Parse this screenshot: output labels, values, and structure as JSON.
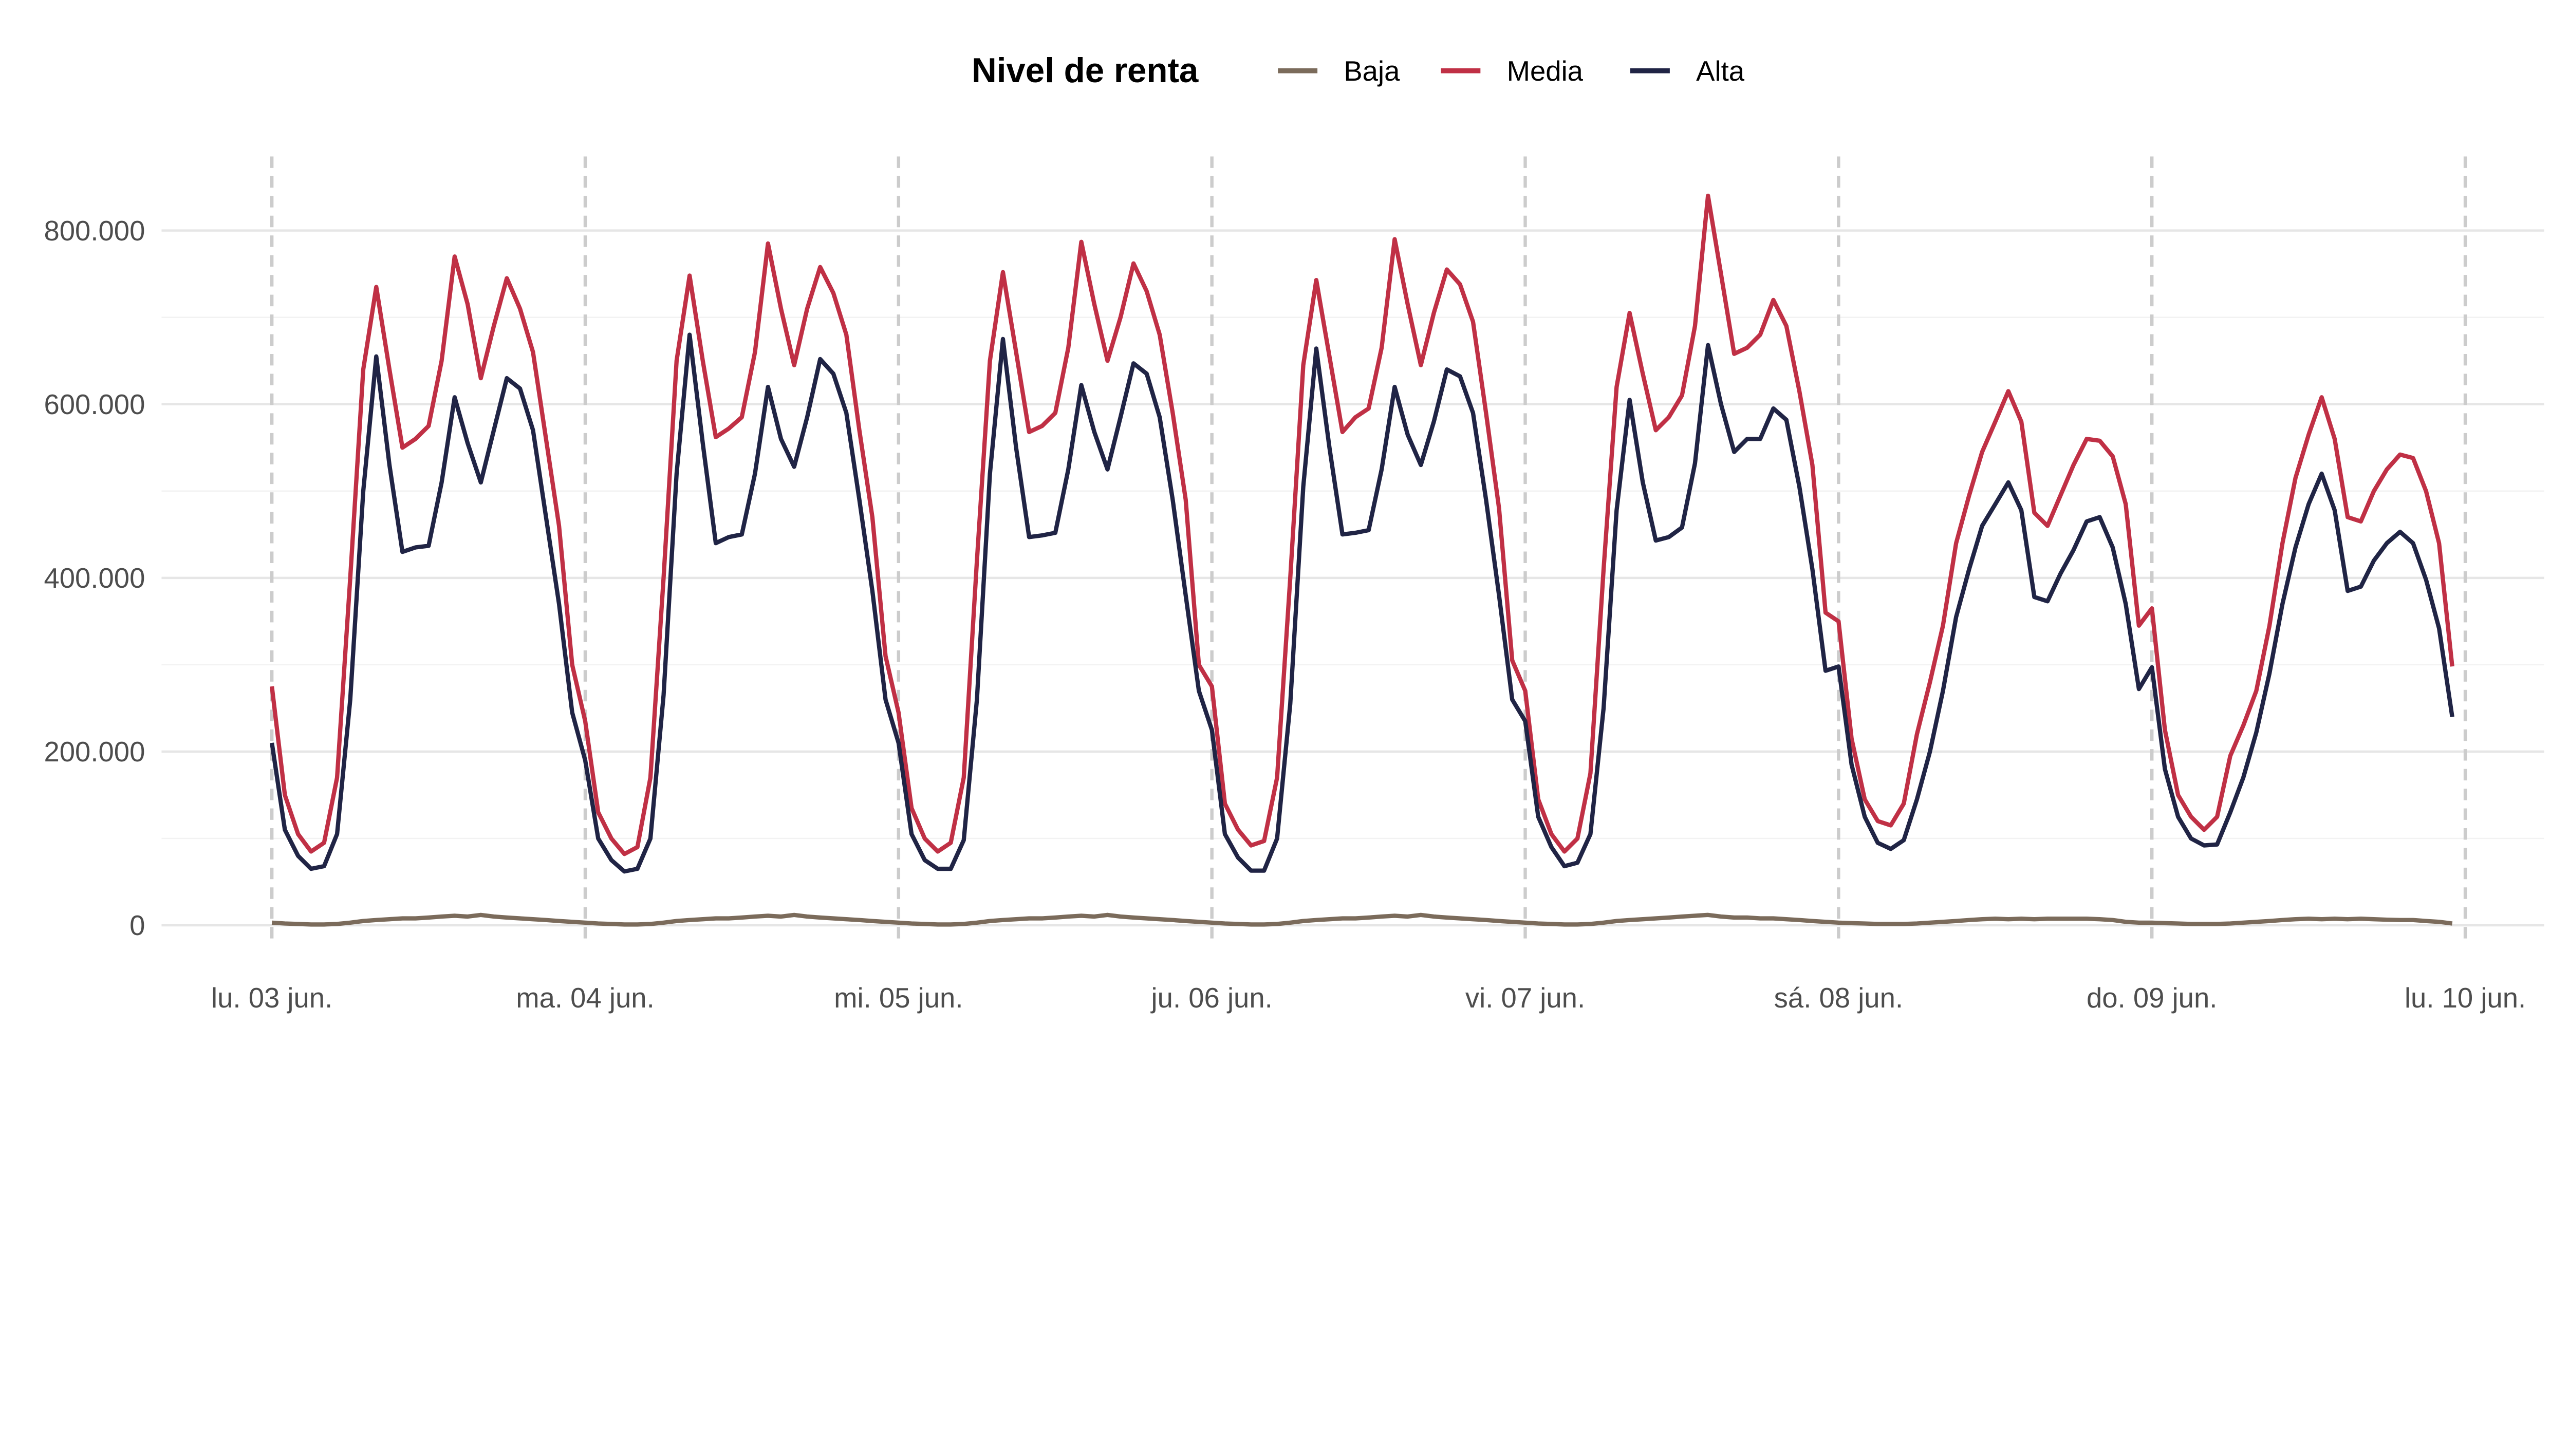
{
  "chart_data": {
    "type": "line",
    "title": "",
    "xlabel": "",
    "ylabel": "",
    "value_unit_multiplier": 1000,
    "ylim": [
      0,
      850
    ],
    "y_ticks": [
      0,
      200,
      400,
      600,
      800
    ],
    "y_tick_labels": [
      "0",
      "200.000",
      "400.000",
      "600.000",
      "800.000"
    ],
    "x_tick_labels": [
      "lu. 03 jun.",
      "ma. 04 jun.",
      "mi. 05 jun.",
      "ju. 06 jun.",
      "vi. 07 jun.",
      "sá. 08 jun.",
      "do. 09 jun.",
      "lu. 10 jun."
    ],
    "x_resolution": "hourly, starting lu. 03 jun. 00:00",
    "grid": true,
    "legend": {
      "title": "Nivel de renta",
      "placement": "top-center"
    },
    "series": [
      {
        "name": "Baja",
        "color": "#7b6b5b",
        "values": [
          3,
          2,
          1.5,
          1,
          1,
          1.5,
          3,
          5,
          6,
          7,
          8,
          8,
          9,
          10,
          11,
          10,
          12,
          10,
          9,
          8,
          7,
          6,
          5,
          4,
          3,
          2,
          1.5,
          1,
          1,
          1.5,
          3,
          5,
          6,
          7,
          8,
          8,
          9,
          10,
          11,
          10,
          12,
          10,
          9,
          8,
          7,
          6,
          5,
          4,
          3,
          2,
          1.5,
          1,
          1,
          1.5,
          3,
          5,
          6,
          7,
          8,
          8,
          9,
          10,
          11,
          10,
          12,
          10,
          9,
          8,
          7,
          6,
          5,
          4,
          3,
          2,
          1.5,
          1,
          1,
          1.5,
          3,
          5,
          6,
          7,
          8,
          8,
          9,
          10,
          11,
          10,
          12,
          10,
          9,
          8,
          7,
          6,
          5,
          4,
          3,
          2,
          1.5,
          1,
          1,
          1.5,
          3,
          5,
          6,
          7,
          8,
          9,
          10,
          11,
          12,
          10,
          9,
          9,
          8,
          8,
          7,
          6,
          5,
          4,
          3,
          2.5,
          2,
          1.5,
          1.5,
          1.5,
          2,
          3,
          4,
          5,
          6,
          7,
          7.5,
          7,
          7.5,
          7,
          7.5,
          7.5,
          7.5,
          7.5,
          7,
          6,
          4,
          3,
          3,
          2.5,
          2,
          1.5,
          1.5,
          1.5,
          2,
          3,
          4,
          5,
          6,
          7,
          7.5,
          7,
          7.5,
          7,
          7.5,
          7,
          6.5,
          6,
          6,
          5,
          4,
          2
        ]
      },
      {
        "name": "Media",
        "color": "#c03045",
        "values": [
          275,
          150,
          105,
          85,
          95,
          170,
          400,
          640,
          735,
          640,
          550,
          560,
          575,
          650,
          770,
          715,
          630,
          690,
          745,
          710,
          660,
          560,
          460,
          300,
          235,
          130,
          100,
          82,
          90,
          170,
          400,
          650,
          748,
          650,
          562,
          572,
          585,
          660,
          785,
          710,
          645,
          710,
          758,
          728,
          680,
          570,
          470,
          310,
          245,
          135,
          100,
          85,
          95,
          170,
          420,
          650,
          752,
          660,
          568,
          575,
          590,
          665,
          787,
          715,
          650,
          700,
          762,
          730,
          680,
          590,
          490,
          300,
          275,
          140,
          110,
          92,
          97,
          170,
          400,
          645,
          743,
          655,
          568,
          585,
          595,
          665,
          790,
          715,
          645,
          705,
          755,
          738,
          695,
          590,
          480,
          305,
          270,
          145,
          105,
          85,
          100,
          175,
          410,
          620,
          705,
          635,
          570,
          585,
          610,
          690,
          840,
          750,
          658,
          665,
          680,
          720,
          690,
          615,
          530,
          360,
          350,
          215,
          145,
          120,
          115,
          140,
          220,
          280,
          345,
          440,
          495,
          545,
          580,
          615,
          580,
          475,
          460,
          495,
          530,
          560,
          558,
          540,
          485,
          345,
          365,
          225,
          150,
          125,
          110,
          125,
          195,
          230,
          270,
          345,
          440,
          515,
          565,
          608,
          560,
          470,
          465,
          500,
          525,
          542,
          538,
          500,
          440,
          298
        ]
      },
      {
        "name": "Alta",
        "color": "#202445",
        "values": [
          210,
          110,
          80,
          65,
          68,
          105,
          260,
          500,
          655,
          530,
          430,
          435,
          437,
          510,
          608,
          555,
          510,
          570,
          630,
          618,
          570,
          470,
          370,
          245,
          190,
          100,
          75,
          62,
          65,
          100,
          265,
          520,
          680,
          555,
          440,
          447,
          450,
          520,
          620,
          560,
          528,
          585,
          652,
          635,
          590,
          490,
          385,
          260,
          210,
          105,
          75,
          65,
          65,
          98,
          260,
          520,
          675,
          550,
          447,
          449,
          452,
          525,
          622,
          568,
          525,
          585,
          647,
          635,
          585,
          490,
          380,
          270,
          225,
          105,
          78,
          63,
          63,
          100,
          255,
          505,
          664,
          550,
          450,
          452,
          455,
          525,
          620,
          565,
          530,
          580,
          640,
          632,
          590,
          490,
          380,
          260,
          235,
          125,
          90,
          68,
          72,
          105,
          250,
          478,
          605,
          510,
          443,
          447,
          458,
          532,
          668,
          600,
          545,
          560,
          560,
          595,
          582,
          505,
          410,
          293,
          298,
          185,
          125,
          95,
          88,
          98,
          145,
          200,
          270,
          355,
          410,
          460,
          485,
          510,
          478,
          378,
          373,
          405,
          432,
          465,
          470,
          435,
          370,
          272,
          297,
          180,
          125,
          100,
          92,
          93,
          130,
          170,
          222,
          290,
          370,
          435,
          485,
          520,
          478,
          385,
          390,
          420,
          440,
          453,
          440,
          398,
          342,
          240
        ]
      }
    ]
  }
}
